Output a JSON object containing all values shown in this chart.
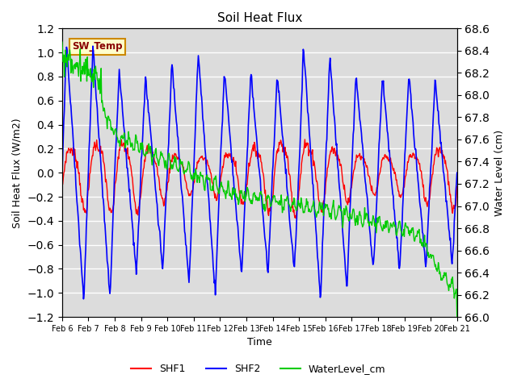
{
  "title": "Soil Heat Flux",
  "xlabel": "Time",
  "ylabel_left": "Soil Heat Flux (W/m2)",
  "ylabel_right": "Water Level (cm)",
  "ylim_left": [
    -1.2,
    1.2
  ],
  "ylim_right": [
    66.0,
    68.6
  ],
  "yticks_left": [
    -1.2,
    -1.0,
    -0.8,
    -0.6,
    -0.4,
    -0.2,
    0.0,
    0.2,
    0.4,
    0.6,
    0.8,
    1.0,
    1.2
  ],
  "yticks_right": [
    66.0,
    66.2,
    66.4,
    66.6,
    66.8,
    67.0,
    67.2,
    67.4,
    67.6,
    67.8,
    68.0,
    68.2,
    68.4,
    68.6
  ],
  "bg_color": "#dcdcdc",
  "grid_color": "white",
  "shf1_color": "red",
  "shf2_color": "blue",
  "water_color": "#00cc00",
  "sw_temp_box_facecolor": "#ffffcc",
  "sw_temp_box_edgecolor": "#cc8800",
  "sw_temp_text_color": "#880000",
  "legend_labels": [
    "SHF1",
    "SHF2",
    "WaterLevel_cm"
  ],
  "xtick_labels": [
    "Feb 6",
    "Feb 7",
    "Feb 8",
    "Feb 9",
    "Feb 10",
    "Feb 11",
    "Feb 12",
    "Feb 13",
    "Feb 14",
    "Feb 15",
    "Feb 16",
    "Feb 17",
    "Feb 18",
    "Feb 19",
    "Feb 20",
    "Feb 21"
  ],
  "num_days": 15,
  "pts_per_day": 48
}
